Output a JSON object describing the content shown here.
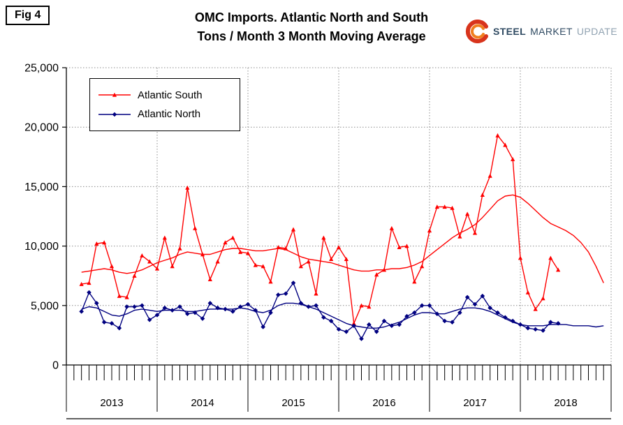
{
  "fig_label": "Fig 4",
  "title": {
    "line1": "OMC Imports. Atlantic North and South",
    "line2": "Tons / Month 3 Month Moving Average"
  },
  "logo": {
    "steel": "STEEL",
    "market": "MARKET",
    "update": "UPDATE",
    "swoosh_outer_color": "#D8341C",
    "swoosh_inner_color": "#F07F1F"
  },
  "legend": [
    {
      "label": "Atlantic South",
      "color": "#FF0000",
      "marker": "triangle"
    },
    {
      "label": "Atlantic North",
      "color": "#000080",
      "marker": "diamond"
    }
  ],
  "chart_data": {
    "type": "line",
    "title": "OMC Imports. Atlantic North and South — Tons / Month 3 Month Moving Average",
    "xlabel": "",
    "ylabel": "",
    "grid": true,
    "legend_position": "top-left-inside",
    "ylim": [
      0,
      25000
    ],
    "ytick_step": 5000,
    "ytick_labels": [
      "0",
      "5,000",
      "10,000",
      "15,000",
      "20,000",
      "25,000"
    ],
    "x_axis": {
      "start_month": "2013-01",
      "months_shown": 72,
      "year_labels": [
        "2013",
        "2014",
        "2015",
        "2016",
        "2017",
        "2018"
      ]
    },
    "series": [
      {
        "name": "Atlantic South",
        "color": "#FF0000",
        "markers": true,
        "marker": "triangle",
        "start_index": 2,
        "values": [
          6800,
          6900,
          10200,
          10300,
          8300,
          5800,
          5700,
          7500,
          9200,
          8700,
          8100,
          10700,
          8300,
          9800,
          14900,
          11500,
          9300,
          7200,
          8700,
          10300,
          10700,
          9500,
          9400,
          8400,
          8300,
          7000,
          9900,
          9800,
          11400,
          8300,
          8700,
          6000,
          10700,
          8900,
          9900,
          8900,
          3500,
          5000,
          4900,
          7600,
          8000,
          11500,
          9900,
          10000,
          7000,
          8300,
          11300,
          13300,
          13300,
          13200,
          10800,
          12700,
          11100,
          14300,
          15900,
          19300,
          18500,
          17300,
          9000,
          6100,
          4700,
          5600,
          9000,
          8000
        ]
      },
      {
        "name": "Atlantic North",
        "color": "#000080",
        "markers": true,
        "marker": "diamond",
        "start_index": 2,
        "values": [
          4500,
          6100,
          5200,
          3600,
          3500,
          3100,
          4900,
          4900,
          5000,
          3800,
          4200,
          4800,
          4600,
          4900,
          4300,
          4400,
          3900,
          5200,
          4800,
          4700,
          4500,
          4900,
          5100,
          4600,
          3200,
          4400,
          5900,
          6000,
          6900,
          5200,
          4900,
          5000,
          4000,
          3700,
          3000,
          2800,
          3300,
          2200,
          3400,
          2800,
          3700,
          3300,
          3400,
          4100,
          4400,
          5000,
          5000,
          4300,
          3700,
          3600,
          4400,
          5700,
          5100,
          5800,
          4800,
          4400,
          4000,
          3700,
          3400,
          3100,
          3000,
          2900,
          3600,
          3500
        ]
      },
      {
        "name": "Atlantic South 3-Month Moving Avg",
        "color": "#FF0000",
        "markers": false,
        "start_index": 2,
        "values": [
          7800,
          7900,
          8000,
          8100,
          8000,
          7800,
          7700,
          7800,
          8000,
          8300,
          8600,
          8800,
          9000,
          9300,
          9500,
          9400,
          9300,
          9300,
          9500,
          9700,
          9800,
          9800,
          9700,
          9600,
          9600,
          9700,
          9800,
          9700,
          9400,
          9100,
          8900,
          8800,
          8700,
          8600,
          8400,
          8200,
          8000,
          7900,
          7900,
          8000,
          8000,
          8100,
          8100,
          8200,
          8400,
          8700,
          9200,
          9700,
          10200,
          10700,
          11100,
          11400,
          11800,
          12400,
          13100,
          13800,
          14200,
          14300,
          14100,
          13600,
          13000,
          12400,
          11900,
          11600,
          11300,
          10900,
          10300,
          9500,
          8300,
          6900
        ]
      },
      {
        "name": "Atlantic North 3-Month Moving Avg",
        "color": "#000080",
        "markers": false,
        "start_index": 2,
        "values": [
          4700,
          4900,
          4800,
          4500,
          4200,
          4100,
          4300,
          4600,
          4700,
          4600,
          4500,
          4600,
          4600,
          4600,
          4500,
          4500,
          4600,
          4700,
          4700,
          4700,
          4700,
          4800,
          4700,
          4500,
          4400,
          4600,
          5000,
          5200,
          5200,
          5100,
          4900,
          4700,
          4400,
          4100,
          3800,
          3500,
          3300,
          3200,
          3100,
          3100,
          3200,
          3400,
          3600,
          3900,
          4200,
          4400,
          4400,
          4300,
          4300,
          4500,
          4700,
          4800,
          4800,
          4700,
          4500,
          4200,
          3900,
          3600,
          3400,
          3300,
          3300,
          3300,
          3400,
          3400,
          3400,
          3300,
          3300,
          3300,
          3200,
          3300
        ]
      }
    ]
  }
}
